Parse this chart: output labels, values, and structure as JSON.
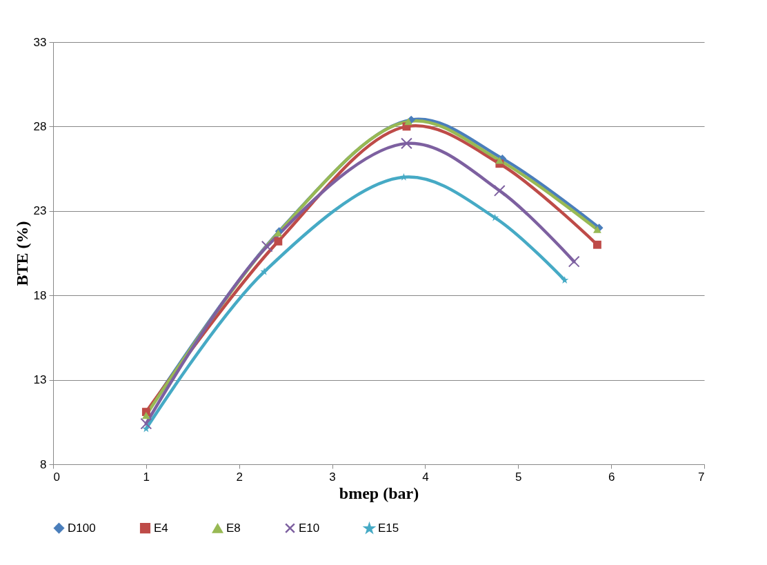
{
  "chart_data": {
    "type": "line",
    "xlabel": "bmep (bar)",
    "ylabel": "BTE (%)",
    "xlim": [
      0,
      7
    ],
    "xticks": [
      0,
      1,
      2,
      3,
      4,
      5,
      6,
      7
    ],
    "ylim": [
      8,
      33
    ],
    "yticks": [
      8,
      13,
      18,
      23,
      28,
      33
    ],
    "grid": "y",
    "legend": "bottom",
    "series": [
      {
        "name": "D100",
        "color": "#4a7ebb",
        "marker": "diamond",
        "x": [
          1,
          2.43,
          3.85,
          4.83,
          5.87
        ],
        "values": [
          11.0,
          21.8,
          28.4,
          26.1,
          22.0
        ]
      },
      {
        "name": "E4",
        "color": "#be4b48",
        "marker": "square",
        "x": [
          1,
          2.42,
          3.8,
          4.8,
          5.85
        ],
        "values": [
          11.1,
          21.2,
          28.0,
          25.8,
          21.0
        ]
      },
      {
        "name": "E8",
        "color": "#98b954",
        "marker": "triangle",
        "x": [
          1,
          2.42,
          3.82,
          4.8,
          5.85
        ],
        "values": [
          10.9,
          21.7,
          28.3,
          26.0,
          21.9
        ]
      },
      {
        "name": "E10",
        "color": "#7d60a0",
        "marker": "cross",
        "x": [
          1,
          2.3,
          3.8,
          4.8,
          5.6
        ],
        "values": [
          10.4,
          20.9,
          27.0,
          24.2,
          20.0
        ]
      },
      {
        "name": "E15",
        "color": "#46aac5",
        "marker": "star",
        "x": [
          1,
          2.27,
          3.77,
          4.75,
          5.5
        ],
        "values": [
          10.1,
          19.4,
          25.0,
          22.6,
          18.9
        ]
      }
    ]
  }
}
